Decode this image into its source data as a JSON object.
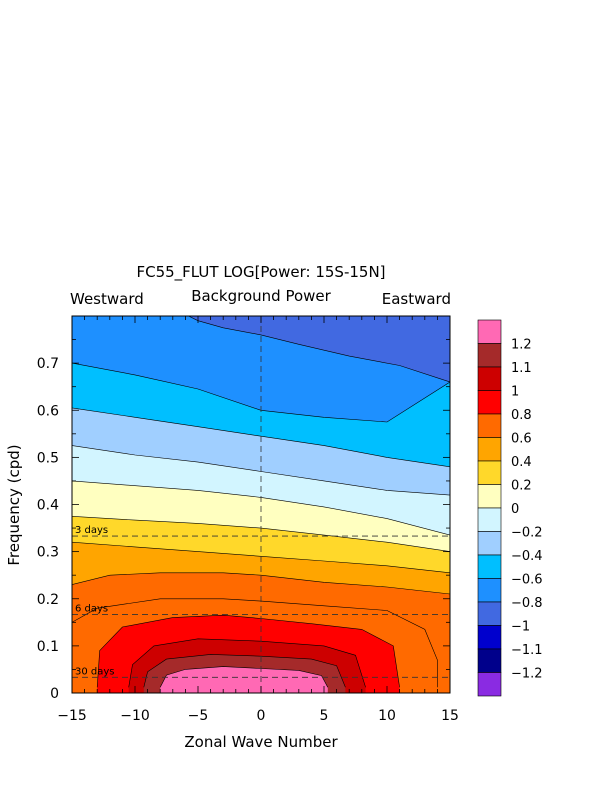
{
  "chart_data": {
    "type": "contour",
    "title": "FC55_FLUT LOG[Power: 15S-15N]",
    "subtitle": "Background Power",
    "left_label": "Westward",
    "right_label": "Eastward",
    "xlabel": "Zonal Wave Number",
    "ylabel": "Frequency (cpd)",
    "xlim": [
      -15,
      15
    ],
    "ylim": [
      0,
      0.8
    ],
    "x_ticks": [
      -15,
      -10,
      -5,
      0,
      5,
      10,
      15
    ],
    "x_tick_labels": [
      "−15",
      "−10",
      "−5",
      "0",
      "5",
      "10",
      "15"
    ],
    "y_ticks": [
      0,
      0.1,
      0.2,
      0.3,
      0.4,
      0.5,
      0.6,
      0.7
    ],
    "y_tick_labels": [
      "0",
      "0.1",
      "0.2",
      "0.3",
      "0.4",
      "0.5",
      "0.6",
      "0.7"
    ],
    "reference_lines": [
      {
        "label": "3 days",
        "frequency": 0.333
      },
      {
        "label": "6 days",
        "frequency": 0.1667
      },
      {
        "label": "30 days",
        "frequency": 0.0333
      }
    ],
    "vertical_reference": 0,
    "colorbar": {
      "labels": [
        "1.2",
        "1.1",
        "1",
        "0.8",
        "0.6",
        "0.4",
        "0.2",
        "0",
        "−0.2",
        "−0.4",
        "−0.6",
        "−0.8",
        "−1",
        "−1.1",
        "−1.2"
      ],
      "colors": [
        "#ff69b4",
        "#a52a2a",
        "#cd0000",
        "#ff0000",
        "#ff6a00",
        "#ffa500",
        "#ffd82a",
        "#ffffc0",
        "#d2f5ff",
        "#a0cfff",
        "#00bfff",
        "#1e90ff",
        "#4169e1",
        "#0000cd",
        "#00008b",
        "#8a2be2"
      ]
    }
  }
}
